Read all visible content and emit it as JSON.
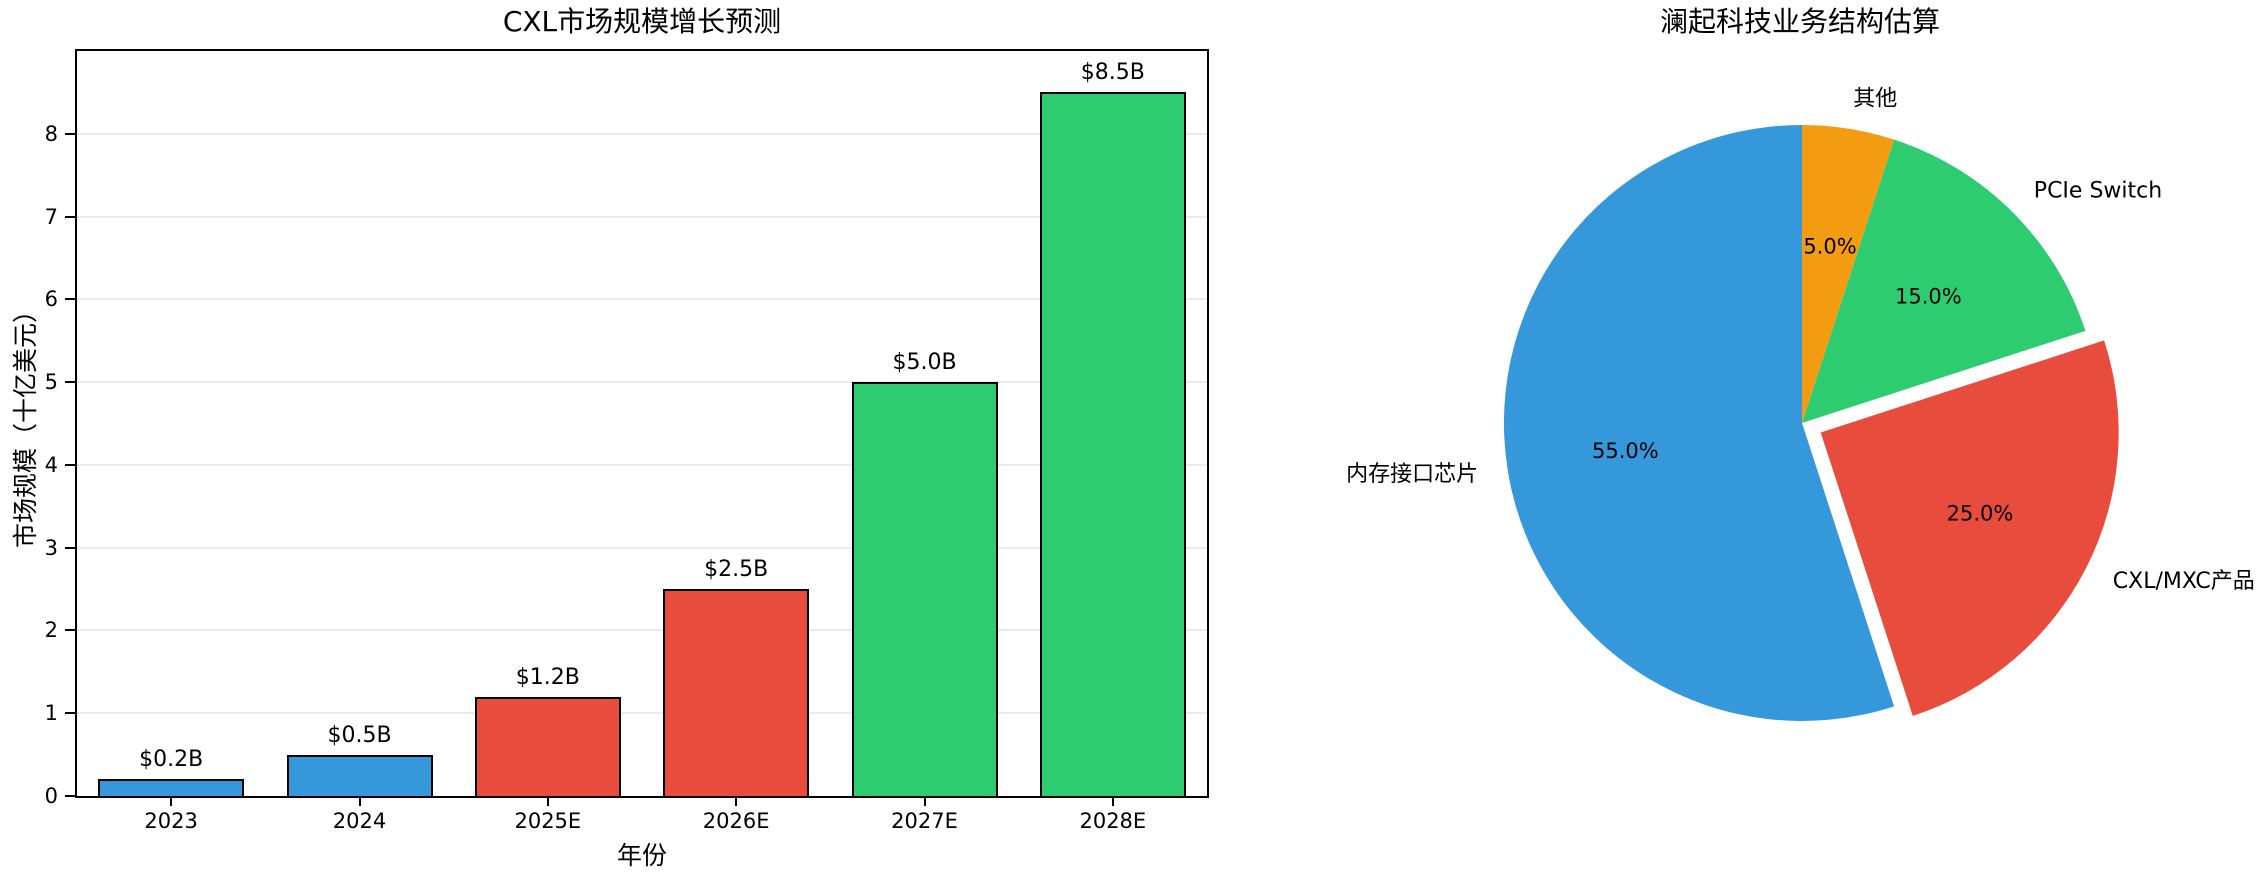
{
  "figure": {
    "background": "#ffffff"
  },
  "chart_data": [
    {
      "type": "bar",
      "title": "CXL市场规模增长预测",
      "xlabel": "年份",
      "ylabel": "市场规模（十亿美元）",
      "categories": [
        "2023",
        "2024",
        "2025E",
        "2026E",
        "2027E",
        "2028E"
      ],
      "values": [
        0.2,
        0.5,
        1.2,
        2.5,
        5.0,
        8.5
      ],
      "bar_labels": [
        "$0.2B",
        "$0.5B",
        "$1.2B",
        "$2.5B",
        "$5.0B",
        "$8.5B"
      ],
      "bar_colors": [
        "#3498db",
        "#3498db",
        "#e74c3c",
        "#e74c3c",
        "#2ecc71",
        "#2ecc71"
      ],
      "edge_color": "#000000",
      "grid_color": "#ebebeb",
      "ylim": [
        0,
        9
      ],
      "yticks": [
        0,
        1,
        2,
        3,
        4,
        5,
        6,
        7,
        8
      ],
      "grid": true
    },
    {
      "type": "pie",
      "title": "澜起科技业务结构估算",
      "start_angle": 90,
      "direction": "counterclockwise",
      "slices": [
        {
          "label": "内存接口芯片",
          "value": 55.0,
          "pct_label": "55.0%",
          "color": "#3498db",
          "exploded": false
        },
        {
          "label": "CXL/MXC产品",
          "value": 25.0,
          "pct_label": "25.0%",
          "color": "#e74c3c",
          "exploded": true
        },
        {
          "label": "PCIe Switch",
          "value": 15.0,
          "pct_label": "15.0%",
          "color": "#2ecc71",
          "exploded": false
        },
        {
          "label": "其他",
          "value": 5.0,
          "pct_label": "5.0%",
          "color": "#f39c12",
          "exploded": false
        }
      ]
    }
  ]
}
